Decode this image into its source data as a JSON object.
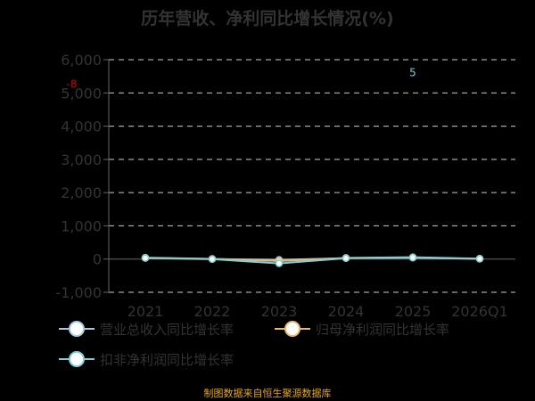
{
  "chart_data": {
    "type": "line",
    "title": "历年营收、净利同比增长情况(%)",
    "categories": [
      "2021",
      "2022",
      "2023",
      "2024",
      "2025",
      "2026Q1"
    ],
    "yticks": [
      "6,000",
      "5,000",
      "4,000",
      "3,000",
      "2,000",
      "1,000",
      "0",
      "-1,000"
    ],
    "ylim": [
      -1000,
      6000
    ],
    "grid": true,
    "legend_position": "bottom-left",
    "series": [
      {
        "name": "营业总收入同比增长率",
        "color": "#a8c8e0",
        "values": [
          35,
          2,
          -25,
          28,
          40,
          8
        ]
      },
      {
        "name": "归母净利润同比增长率",
        "color": "#e8b870",
        "values": [
          42,
          5,
          -60,
          35,
          55,
          12
        ]
      },
      {
        "name": "扣非净利润同比增长率",
        "color": "#7ecfd8",
        "values": [
          30,
          -3,
          -130,
          25,
          45,
          6
        ]
      }
    ],
    "annotations": [
      {
        "text": "-8",
        "color": "#cc0000",
        "x_index": -1.1,
        "y": 5150
      },
      {
        "text": "5",
        "color": "#7ecfd8",
        "x_index": 4.0,
        "y": 5500
      }
    ]
  },
  "footer": {
    "source": "制图数据来自恒生聚源数据库"
  }
}
